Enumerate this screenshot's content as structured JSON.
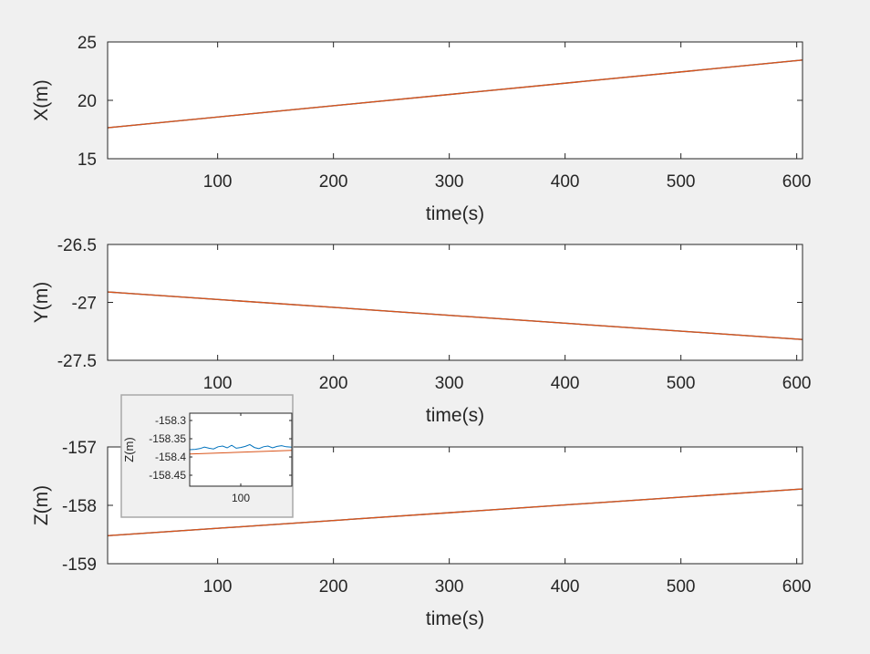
{
  "chart_data": [
    {
      "type": "line",
      "xlabel": "time(s)",
      "ylabel": "X(m)",
      "xlim": [
        5,
        605
      ],
      "ylim": [
        15,
        25
      ],
      "xticks": [
        100,
        200,
        300,
        400,
        500,
        600
      ],
      "yticks": [
        15,
        20,
        25
      ],
      "ytick_labels": [
        "15",
        "20",
        "25"
      ],
      "series": [
        {
          "color": "#0072bd",
          "x": [
            5,
            605
          ],
          "y": [
            17.65,
            23.45
          ]
        },
        {
          "color": "#d95319",
          "x": [
            5,
            605
          ],
          "y": [
            17.65,
            23.45
          ]
        }
      ]
    },
    {
      "type": "line",
      "xlabel": "time(s)",
      "ylabel": "Y(m)",
      "xlim": [
        5,
        605
      ],
      "ylim": [
        -27.5,
        -26.5
      ],
      "xticks": [
        100,
        200,
        300,
        400,
        500,
        600
      ],
      "yticks": [
        -27.5,
        -27,
        -26.5
      ],
      "ytick_labels": [
        "-27.5",
        "-27",
        "-26.5"
      ],
      "series": [
        {
          "color": "#0072bd",
          "x": [
            5,
            605
          ],
          "y": [
            -26.91,
            -27.32
          ]
        },
        {
          "color": "#d95319",
          "x": [
            5,
            605
          ],
          "y": [
            -26.91,
            -27.32
          ]
        }
      ]
    },
    {
      "type": "line",
      "xlabel": "time(s)",
      "ylabel": "Z(m)",
      "xlim": [
        5,
        605
      ],
      "ylim": [
        -159,
        -157
      ],
      "xticks": [
        100,
        200,
        300,
        400,
        500,
        600
      ],
      "yticks": [
        -159,
        -158,
        -157
      ],
      "ytick_labels": [
        "-159",
        "-158",
        "-157"
      ],
      "series": [
        {
          "color": "#0072bd",
          "x": [
            5,
            605
          ],
          "y": [
            -158.52,
            -157.72
          ]
        },
        {
          "color": "#d95319",
          "x": [
            5,
            605
          ],
          "y": [
            -158.52,
            -157.72
          ]
        }
      ],
      "inset": {
        "ylabel": "Z(m)",
        "xlim": [
          55,
          145
        ],
        "ylim": [
          -158.48,
          -158.28
        ],
        "xticks": [
          100
        ],
        "yticks": [
          -158.45,
          -158.4,
          -158.35,
          -158.3
        ],
        "ytick_labels": [
          "-158.45",
          "-158.4",
          "-158.35",
          "-158.3"
        ],
        "series": [
          {
            "color": "#0072bd",
            "x": [
              55,
              60,
              64,
              68,
              72,
              76,
              80,
              84,
              88,
              92,
              96,
              100,
              104,
              108,
              112,
              116,
              120,
              124,
              128,
              132,
              136,
              140,
              145
            ],
            "y": [
              -158.38,
              -158.379,
              -158.377,
              -158.373,
              -158.376,
              -158.378,
              -158.372,
              -158.37,
              -158.375,
              -158.368,
              -158.376,
              -158.374,
              -158.371,
              -158.366,
              -158.374,
              -158.377,
              -158.372,
              -158.37,
              -158.375,
              -158.371,
              -158.369,
              -158.372,
              -158.373
            ]
          },
          {
            "color": "#d95319",
            "x": [
              55,
              145
            ],
            "y": [
              -158.392,
              -158.382
            ]
          }
        ]
      }
    }
  ]
}
